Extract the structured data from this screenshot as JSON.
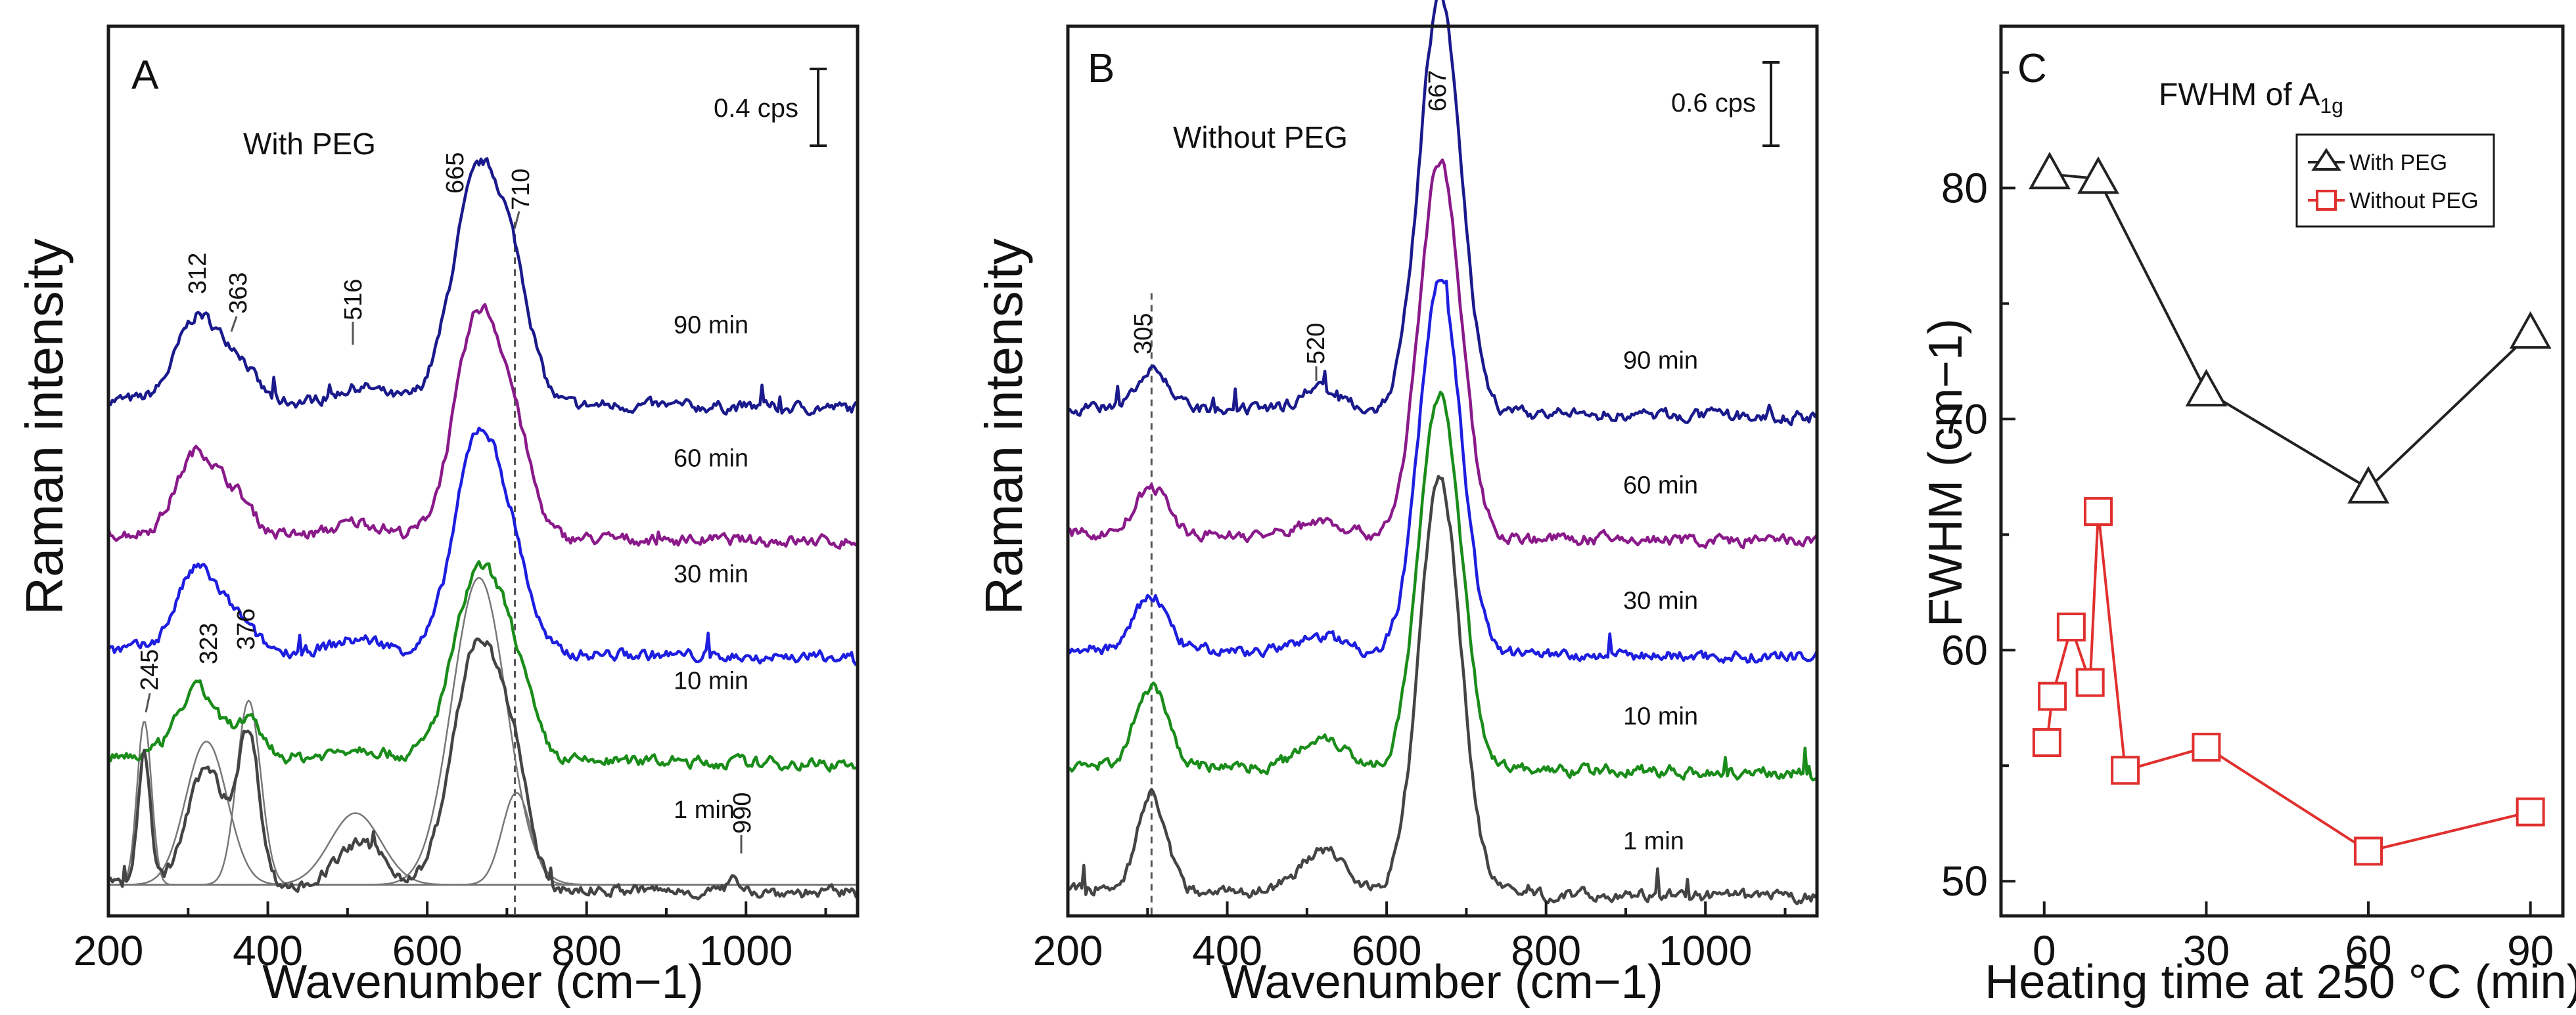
{
  "colors": {
    "t90": "#1a1a8c",
    "t60": "#8a1a8a",
    "t30": "#1e1ee0",
    "t10": "#1a8c1a",
    "t1": "#444444",
    "fit": "#777777",
    "with_peg": "#222222",
    "without_peg": "#e0302e"
  },
  "chart_data": [
    {
      "type": "line",
      "panel_label": "A",
      "condition_label": "With PEG",
      "xlabel": "Wavenumber (cm−1)",
      "ylabel": "Raman intensity",
      "xlim": [
        200,
        1140
      ],
      "xticks": [
        "200",
        "400",
        "600",
        "800",
        "1000"
      ],
      "scale_bar": "0.4 cps",
      "peak_labels": [
        "312",
        "363",
        "516",
        "665",
        "710",
        "245",
        "323",
        "376",
        "990"
      ],
      "reference_line_x": 710,
      "series": [
        {
          "name": "90 min",
          "offset": 0.58,
          "amp": 0.295,
          "peaks": [
            [
              312,
              0.11,
              26
            ],
            [
              363,
              0.05,
              20
            ],
            [
              516,
              0.02,
              30
            ],
            [
              665,
              0.3,
              32
            ],
            [
              712,
              0.1,
              22
            ]
          ]
        },
        {
          "name": "60 min",
          "offset": 0.43,
          "amp": 0.265,
          "peaks": [
            [
              312,
              0.12,
              26
            ],
            [
              363,
              0.045,
              20
            ],
            [
              516,
              0.02,
              30
            ],
            [
              665,
              0.32,
              30
            ],
            [
              712,
              0.1,
              22
            ]
          ]
        },
        {
          "name": "30 min",
          "offset": 0.3,
          "amp": 0.24,
          "peaks": [
            [
              312,
              0.13,
              26
            ],
            [
              363,
              0.04,
              20
            ],
            [
              516,
              0.02,
              30
            ],
            [
              665,
              0.35,
              30
            ],
            [
              712,
              0.09,
              22
            ]
          ]
        },
        {
          "name": "10 min",
          "offset": 0.18,
          "amp": 0.215,
          "peaks": [
            [
              312,
              0.12,
              25
            ],
            [
              376,
              0.06,
              18
            ],
            [
              516,
              0.02,
              30
            ],
            [
              665,
              0.33,
              32
            ],
            [
              712,
              0.1,
              22
            ]
          ]
        },
        {
          "name": "1 min",
          "offset": 0.035,
          "amp": 0.28,
          "peaks": [
            [
              245,
              0.18,
              8
            ],
            [
              323,
              0.16,
              24
            ],
            [
              376,
              0.2,
              14
            ],
            [
              516,
              0.06,
              30
            ],
            [
              665,
              0.34,
              32
            ],
            [
              712,
              0.09,
              18
            ],
            [
              990,
              0.015,
              10
            ]
          ]
        }
      ],
      "fit_components": [
        [
          245,
          0.16,
          9
        ],
        [
          323,
          0.14,
          26
        ],
        [
          376,
          0.18,
          15
        ],
        [
          510,
          0.07,
          32
        ],
        [
          665,
          0.3,
          34
        ],
        [
          712,
          0.09,
          18
        ]
      ]
    },
    {
      "type": "line",
      "panel_label": "B",
      "condition_label": "Without PEG",
      "xlabel": "Wavenumber (cm−1)",
      "ylabel": "Raman intensity",
      "xlim": [
        200,
        1140
      ],
      "xticks": [
        "200",
        "400",
        "600",
        "800",
        "1000"
      ],
      "scale_bar": "0.6 cps",
      "peak_labels": [
        "667",
        "305",
        "520"
      ],
      "reference_line_x": 305,
      "series": [
        {
          "name": "90 min",
          "offset": 0.57,
          "amp": 0.33,
          "peaks": [
            [
              305,
              0.05,
              20
            ],
            [
              520,
              0.03,
              28
            ],
            [
              667,
              0.48,
              26
            ]
          ]
        },
        {
          "name": "60 min",
          "offset": 0.43,
          "amp": 0.3,
          "peaks": [
            [
              305,
              0.06,
              20
            ],
            [
              520,
              0.02,
              28
            ],
            [
              667,
              0.48,
              26
            ]
          ]
        },
        {
          "name": "30 min",
          "offset": 0.3,
          "amp": 0.3,
          "peaks": [
            [
              305,
              0.07,
              20
            ],
            [
              520,
              0.02,
              28
            ],
            [
              667,
              0.48,
              26
            ]
          ]
        },
        {
          "name": "10 min",
          "offset": 0.17,
          "amp": 0.3,
          "peaks": [
            [
              305,
              0.1,
              20
            ],
            [
              520,
              0.04,
              28
            ],
            [
              667,
              0.48,
              26
            ]
          ]
        },
        {
          "name": "1 min",
          "offset": 0.03,
          "amp": 0.33,
          "peaks": [
            [
              305,
              0.11,
              18
            ],
            [
              520,
              0.05,
              28
            ],
            [
              667,
              0.48,
              26
            ]
          ]
        }
      ]
    },
    {
      "type": "scatter",
      "panel_label": "C",
      "title": "FWHM of A",
      "title_subscript": "1g",
      "xlabel": "Heating time at 250 °C (min)",
      "ylabel": "FWHM (cm−1)",
      "xlim": [
        -8,
        96
      ],
      "ylim": [
        48.5,
        87
      ],
      "xticks": [
        0,
        30,
        60,
        90
      ],
      "yticks": [
        50,
        60,
        70,
        80
      ],
      "series": [
        {
          "name": "With PEG",
          "marker": "triangle",
          "x": [
            1,
            10,
            30,
            60,
            90
          ],
          "y": [
            80.6,
            80.4,
            71.2,
            67.0,
            73.7
          ]
        },
        {
          "name": "Without PEG",
          "marker": "square",
          "x": [
            0.5,
            1.5,
            5,
            8.5,
            10,
            15,
            30,
            60,
            90
          ],
          "y": [
            56.0,
            58.0,
            61.0,
            58.6,
            66.0,
            54.8,
            55.8,
            51.3,
            53.0
          ]
        }
      ]
    }
  ]
}
